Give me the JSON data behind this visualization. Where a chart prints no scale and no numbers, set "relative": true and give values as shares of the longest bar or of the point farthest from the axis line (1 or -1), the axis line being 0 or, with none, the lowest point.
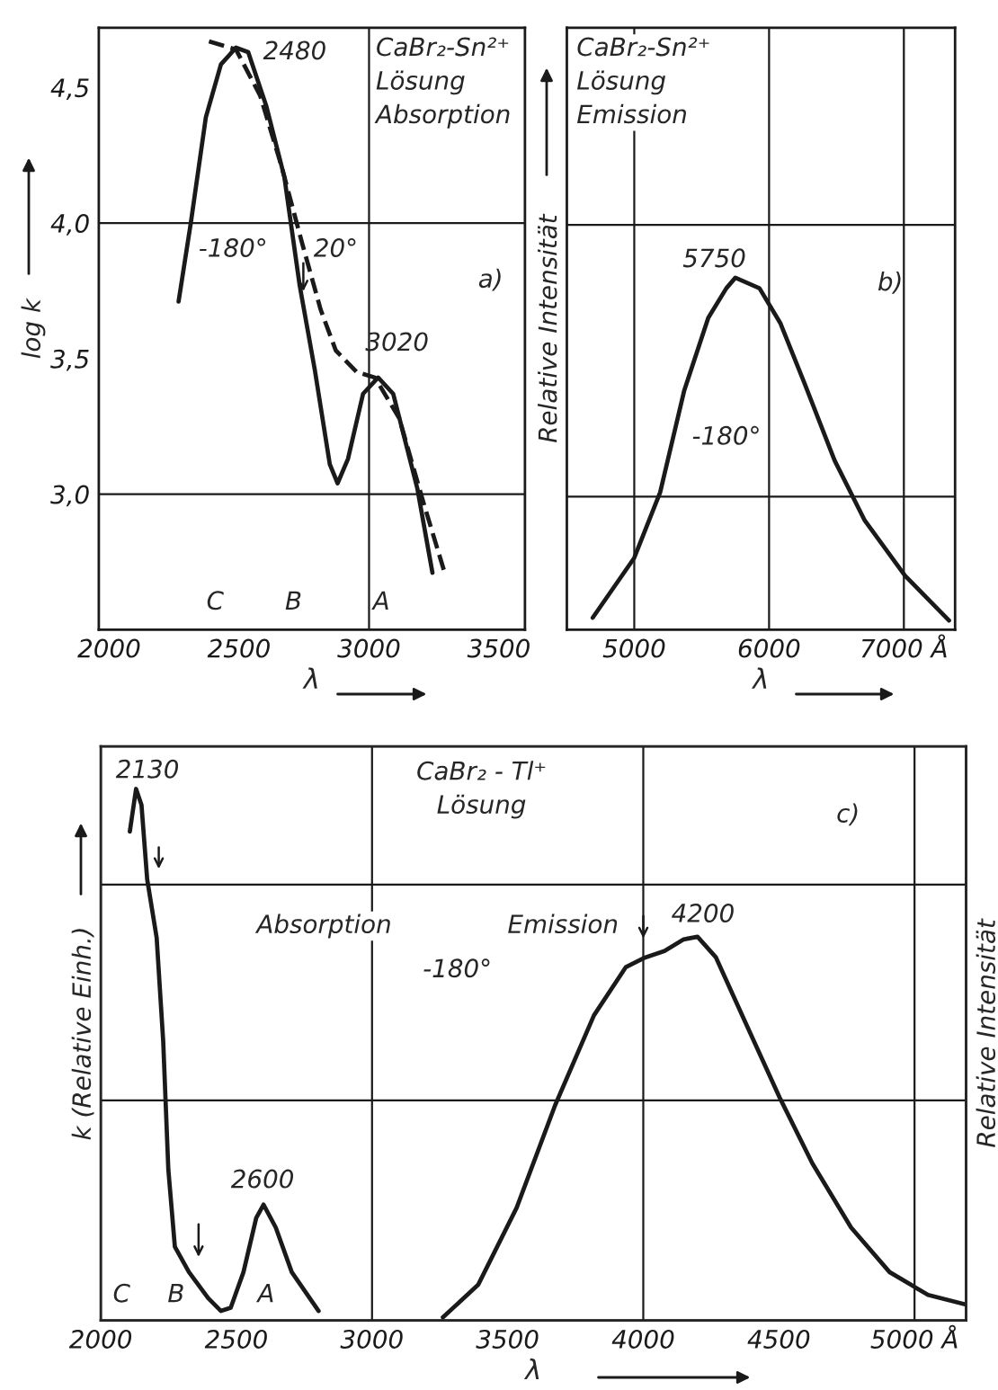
{
  "chart_data": [
    {
      "type": "line",
      "xlabel": "λ",
      "ylabel": "log k",
      "xlim": [
        1960,
        3600
      ],
      "ylim": [
        2.5,
        4.72
      ],
      "xticks": [
        2000,
        2500,
        3000,
        3500
      ],
      "yticks": [
        {
          "value": 3.0,
          "label": "3,0"
        },
        {
          "value": 3.5,
          "label": "3,5"
        },
        {
          "value": 4.0,
          "label": "4,0"
        },
        {
          "value": 4.5,
          "label": "4,5"
        }
      ],
      "series": [
        {
          "color": "#1a1a1a",
          "line_style": "solid",
          "x": [
            2267,
            2314,
            2372,
            2430,
            2488,
            2535,
            2605,
            2674,
            2733,
            2791,
            2849,
            2879,
            2919,
            2977,
            3035,
            3093,
            3186,
            3244
          ],
          "values": [
            3.71,
            4.0,
            4.39,
            4.585,
            4.647,
            4.63,
            4.43,
            4.17,
            3.77,
            3.46,
            3.11,
            3.04,
            3.13,
            3.37,
            3.43,
            3.37,
            3.02,
            2.71
          ]
        },
        {
          "color": "#1a1a1a",
          "line_style": "dashed",
          "x": [
            2384,
            2488,
            2581,
            2663,
            2744,
            2814,
            2872,
            2953,
            3023,
            3116,
            3209,
            3291
          ],
          "values": [
            4.67,
            4.64,
            4.47,
            4.21,
            3.92,
            3.68,
            3.53,
            3.45,
            3.43,
            3.28,
            2.97,
            2.71
          ]
        }
      ],
      "ref_lines": [
        {
          "axis": "x",
          "value": 3000,
          "color": "#1a1a1a"
        },
        {
          "axis": "y",
          "value": 4.0,
          "color": "#1a1a1a"
        },
        {
          "axis": "y",
          "value": 3.0,
          "color": "#1a1a1a"
        }
      ],
      "annotations": [
        "CaBr₂-Sn²⁺\nLösung\nAbsorption",
        "a)",
        "2480",
        "3020",
        "-180°",
        "20°",
        "C",
        "B",
        "A"
      ]
    },
    {
      "type": "line",
      "relative": true,
      "tick_labels": "x",
      "xlabel": "λ",
      "ylabel": "Relative Intensität",
      "xlim": [
        4500,
        7380
      ],
      "xticks": [
        5000,
        6000,
        {
          "value": 7000,
          "label": "7000 Å"
        }
      ],
      "series": [
        {
          "color": "#1a1a1a",
          "x": [
            4692,
            5000,
            5192,
            5371,
            5549,
            5683,
            5750,
            5929,
            6085,
            6263,
            6487,
            6710,
            7009,
            7335
          ],
          "values": [
            0.034,
            0.204,
            0.39,
            0.68,
            0.886,
            0.97,
            1.0,
            0.97,
            0.87,
            0.7,
            0.48,
            0.31,
            0.153,
            0.026
          ]
        }
      ],
      "ref_lines": [
        {
          "axis": "x",
          "value": 5000,
          "color": "#1a1a1a"
        },
        {
          "axis": "x",
          "value": 6000,
          "color": "#1a1a1a"
        },
        {
          "axis": "x",
          "value": 7000,
          "color": "#1a1a1a"
        },
        {
          "axis": "y",
          "value": 1.15,
          "color": "#1a1a1a"
        },
        {
          "axis": "y",
          "value": 0.378,
          "color": "#1a1a1a"
        }
      ],
      "annotations": [
        "CaBr₂-Sn²⁺\nLösung\nEmission",
        "b)",
        "5750",
        "-180°"
      ]
    },
    {
      "type": "line",
      "relative": true,
      "tick_labels": "x",
      "xlabel": "λ",
      "ylabel": "k (Relative Einh.)",
      "y2label": "Relative Intensität",
      "xlim": [
        2000,
        5190
      ],
      "xticks": [
        2000,
        2500,
        3000,
        3500,
        4000,
        4500,
        {
          "value": 5000,
          "label": "5000 Å"
        }
      ],
      "series": [
        {
          "color": "#1a1a1a",
          "x": [
            2107,
            2130,
            2150,
            2171,
            2206,
            2230,
            2249,
            2273,
            2325,
            2396,
            2443,
            2479,
            2526,
            2573,
            2600,
            2645,
            2704,
            2803
          ],
          "values": [
            0.92,
            1.0,
            0.97,
            0.83,
            0.72,
            0.526,
            0.284,
            0.139,
            0.091,
            0.042,
            0.018,
            0.024,
            0.091,
            0.193,
            0.218,
            0.175,
            0.091,
            0.018
          ]
        },
        {
          "color": "#1a1a1a",
          "x": [
            3261,
            3391,
            3533,
            3675,
            3818,
            3936,
            4007,
            4078,
            4149,
            4200,
            4268,
            4386,
            4505,
            4623,
            4766,
            4908,
            5050,
            5190
          ],
          "values": [
            0.006,
            0.067,
            0.212,
            0.405,
            0.574,
            0.665,
            0.683,
            0.695,
            0.717,
            0.722,
            0.683,
            0.55,
            0.417,
            0.296,
            0.175,
            0.091,
            0.048,
            0.03
          ]
        }
      ],
      "ref_lines": [
        {
          "axis": "x",
          "value": 3000,
          "color": "#1a1a1a"
        },
        {
          "axis": "x",
          "value": 4000,
          "color": "#1a1a1a"
        },
        {
          "axis": "x",
          "value": 5000,
          "color": "#1a1a1a"
        },
        {
          "axis": "y",
          "value": 0.82,
          "color": "#1a1a1a"
        },
        {
          "axis": "y",
          "value": 0.414,
          "color": "#1a1a1a"
        }
      ],
      "annotations": [
        "CaBr₂ - Tl⁺\nLösung",
        "c)",
        "Absorption",
        "Emission",
        "-180°",
        "2130",
        "2600",
        "4200",
        "C",
        "B",
        "A"
      ]
    }
  ]
}
